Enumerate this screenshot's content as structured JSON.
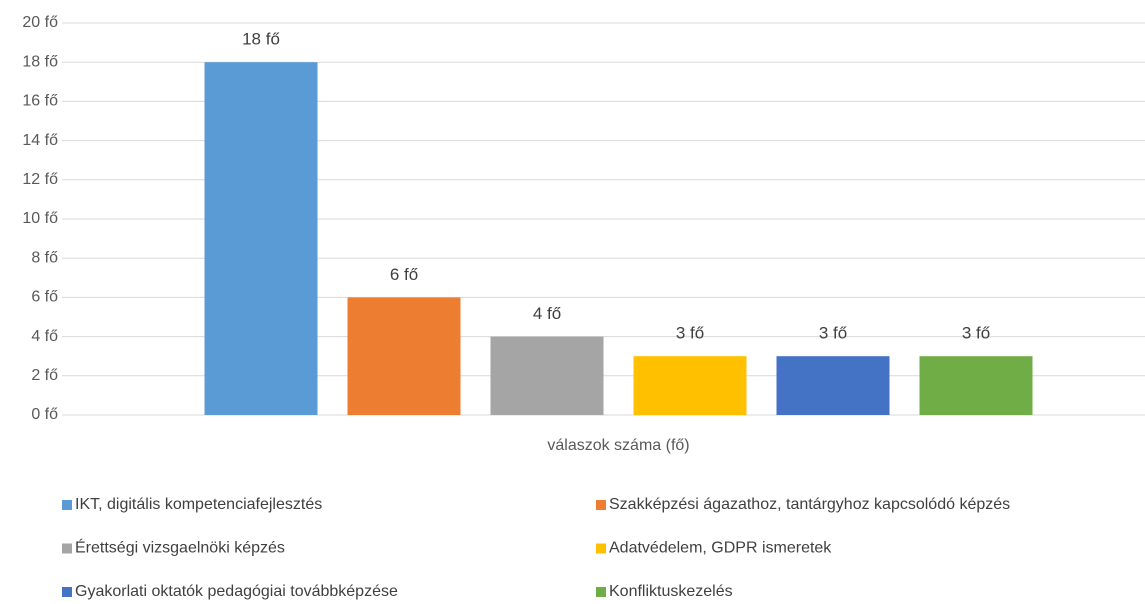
{
  "chart_data": {
    "type": "bar",
    "categories": [
      "válaszok száma (fő)"
    ],
    "series": [
      {
        "name": "IKT, digitális kompetenciafejlesztés",
        "color": "#5b9bd5",
        "values": [
          18
        ],
        "value_labels": [
          "18 fő"
        ]
      },
      {
        "name": "Szakképzési ágazathoz, tantárgyhoz kapcsolódó képzés",
        "color": "#ed7d31",
        "values": [
          6
        ],
        "value_labels": [
          "6 fő"
        ]
      },
      {
        "name": "Érettségi vizsgaelnöki képzés",
        "color": "#a5a5a5",
        "values": [
          4
        ],
        "value_labels": [
          "4 fő"
        ]
      },
      {
        "name": "Adatvédelem, GDPR ismeretek",
        "color": "#ffc000",
        "values": [
          3
        ],
        "value_labels": [
          "3 fő"
        ]
      },
      {
        "name": "Gyakorlati oktatók pedagógiai továbbképzése",
        "color": "#4472c4",
        "values": [
          3
        ],
        "value_labels": [
          "3 fő"
        ]
      },
      {
        "name": "Konfliktuskezelés",
        "color": "#70ad47",
        "values": [
          3
        ],
        "value_labels": [
          "3 fő"
        ]
      }
    ],
    "ylim": [
      0,
      20
    ],
    "yticks": [
      {
        "value": 0,
        "label": "0 fő"
      },
      {
        "value": 2,
        "label": "2 fő"
      },
      {
        "value": 4,
        "label": "4 fő"
      },
      {
        "value": 6,
        "label": "6 fő"
      },
      {
        "value": 8,
        "label": "8 fő"
      },
      {
        "value": 10,
        "label": "10 fő"
      },
      {
        "value": 12,
        "label": "12 fő"
      },
      {
        "value": 14,
        "label": "14 fő"
      },
      {
        "value": 16,
        "label": "16 fő"
      },
      {
        "value": 18,
        "label": "18 fő"
      },
      {
        "value": 20,
        "label": "20 fő"
      }
    ],
    "grid": true,
    "legend": "bottom"
  }
}
